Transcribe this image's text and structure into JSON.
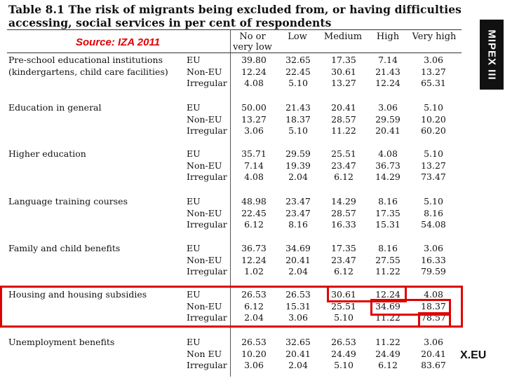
{
  "title": "Table 8.1 The risk of migrants being excluded from, or having difficulties accessing, social services in per cent of respondents",
  "source": "Source: IZA 2011",
  "columns": [
    "No or very low",
    "Low",
    "Medium",
    "High",
    "Very high"
  ],
  "logos": {
    "mipex": "MIPEX III",
    "mpg": "X.EU"
  },
  "highlight_color": "#e00000",
  "rows": [
    {
      "name": [
        "Pre-school educational institutions",
        "(kindergartens, child care facilities)"
      ],
      "groups": [
        {
          "label": "EU",
          "values": [
            "39.80",
            "32.65",
            "17.35",
            "7.14",
            "3.06"
          ]
        },
        {
          "label": "Non-EU",
          "values": [
            "12.24",
            "22.45",
            "30.61",
            "21.43",
            "13.27"
          ]
        },
        {
          "label": "Irregular",
          "values": [
            "4.08",
            "5.10",
            "13.27",
            "12.24",
            "65.31"
          ]
        }
      ]
    },
    {
      "name": [
        "Education in general"
      ],
      "groups": [
        {
          "label": "EU",
          "values": [
            "50.00",
            "21.43",
            "20.41",
            "3.06",
            "5.10"
          ]
        },
        {
          "label": "Non-EU",
          "values": [
            "13.27",
            "18.37",
            "28.57",
            "29.59",
            "10.20"
          ]
        },
        {
          "label": "Irregular",
          "values": [
            "3.06",
            "5.10",
            "11.22",
            "20.41",
            "60.20"
          ]
        }
      ]
    },
    {
      "name": [
        "Higher education"
      ],
      "groups": [
        {
          "label": "EU",
          "values": [
            "35.71",
            "29.59",
            "25.51",
            "4.08",
            "5.10"
          ]
        },
        {
          "label": "Non-EU",
          "values": [
            "7.14",
            "19.39",
            "23.47",
            "36.73",
            "13.27"
          ]
        },
        {
          "label": "Irregular",
          "values": [
            "4.08",
            "2.04",
            "6.12",
            "14.29",
            "73.47"
          ]
        }
      ]
    },
    {
      "name": [
        "Language training courses"
      ],
      "groups": [
        {
          "label": "EU",
          "values": [
            "48.98",
            "23.47",
            "14.29",
            "8.16",
            "5.10"
          ]
        },
        {
          "label": "Non-EU",
          "values": [
            "22.45",
            "23.47",
            "28.57",
            "17.35",
            "8.16"
          ]
        },
        {
          "label": "Irregular",
          "values": [
            "6.12",
            "8.16",
            "16.33",
            "15.31",
            "54.08"
          ]
        }
      ]
    },
    {
      "name": [
        "Family and child benefits"
      ],
      "groups": [
        {
          "label": "EU",
          "values": [
            "36.73",
            "34.69",
            "17.35",
            "8.16",
            "3.06"
          ]
        },
        {
          "label": "Non-EU",
          "values": [
            "12.24",
            "20.41",
            "23.47",
            "27.55",
            "16.33"
          ]
        },
        {
          "label": "Irregular",
          "values": [
            "1.02",
            "2.04",
            "6.12",
            "11.22",
            "79.59"
          ]
        }
      ]
    },
    {
      "name": [
        "Housing and housing subsidies"
      ],
      "groups": [
        {
          "label": "EU",
          "values": [
            "26.53",
            "26.53",
            "30.61",
            "12.24",
            "4.08"
          ]
        },
        {
          "label": "Non-EU",
          "values": [
            "6.12",
            "15.31",
            "25.51",
            "34.69",
            "18.37"
          ]
        },
        {
          "label": "Irregular",
          "values": [
            "2.04",
            "3.06",
            "5.10",
            "11.22",
            "78.57"
          ]
        }
      ]
    },
    {
      "name": [
        "Unemployment benefits"
      ],
      "groups": [
        {
          "label": "EU",
          "values": [
            "26.53",
            "32.65",
            "26.53",
            "11.22",
            "3.06"
          ]
        },
        {
          "label": "Non EU",
          "values": [
            "10.20",
            "20.41",
            "24.49",
            "24.49",
            "20.41"
          ]
        },
        {
          "label": "Irregular",
          "values": [
            "3.06",
            "2.04",
            "5.10",
            "6.12",
            "83.67"
          ]
        }
      ]
    }
  ]
}
